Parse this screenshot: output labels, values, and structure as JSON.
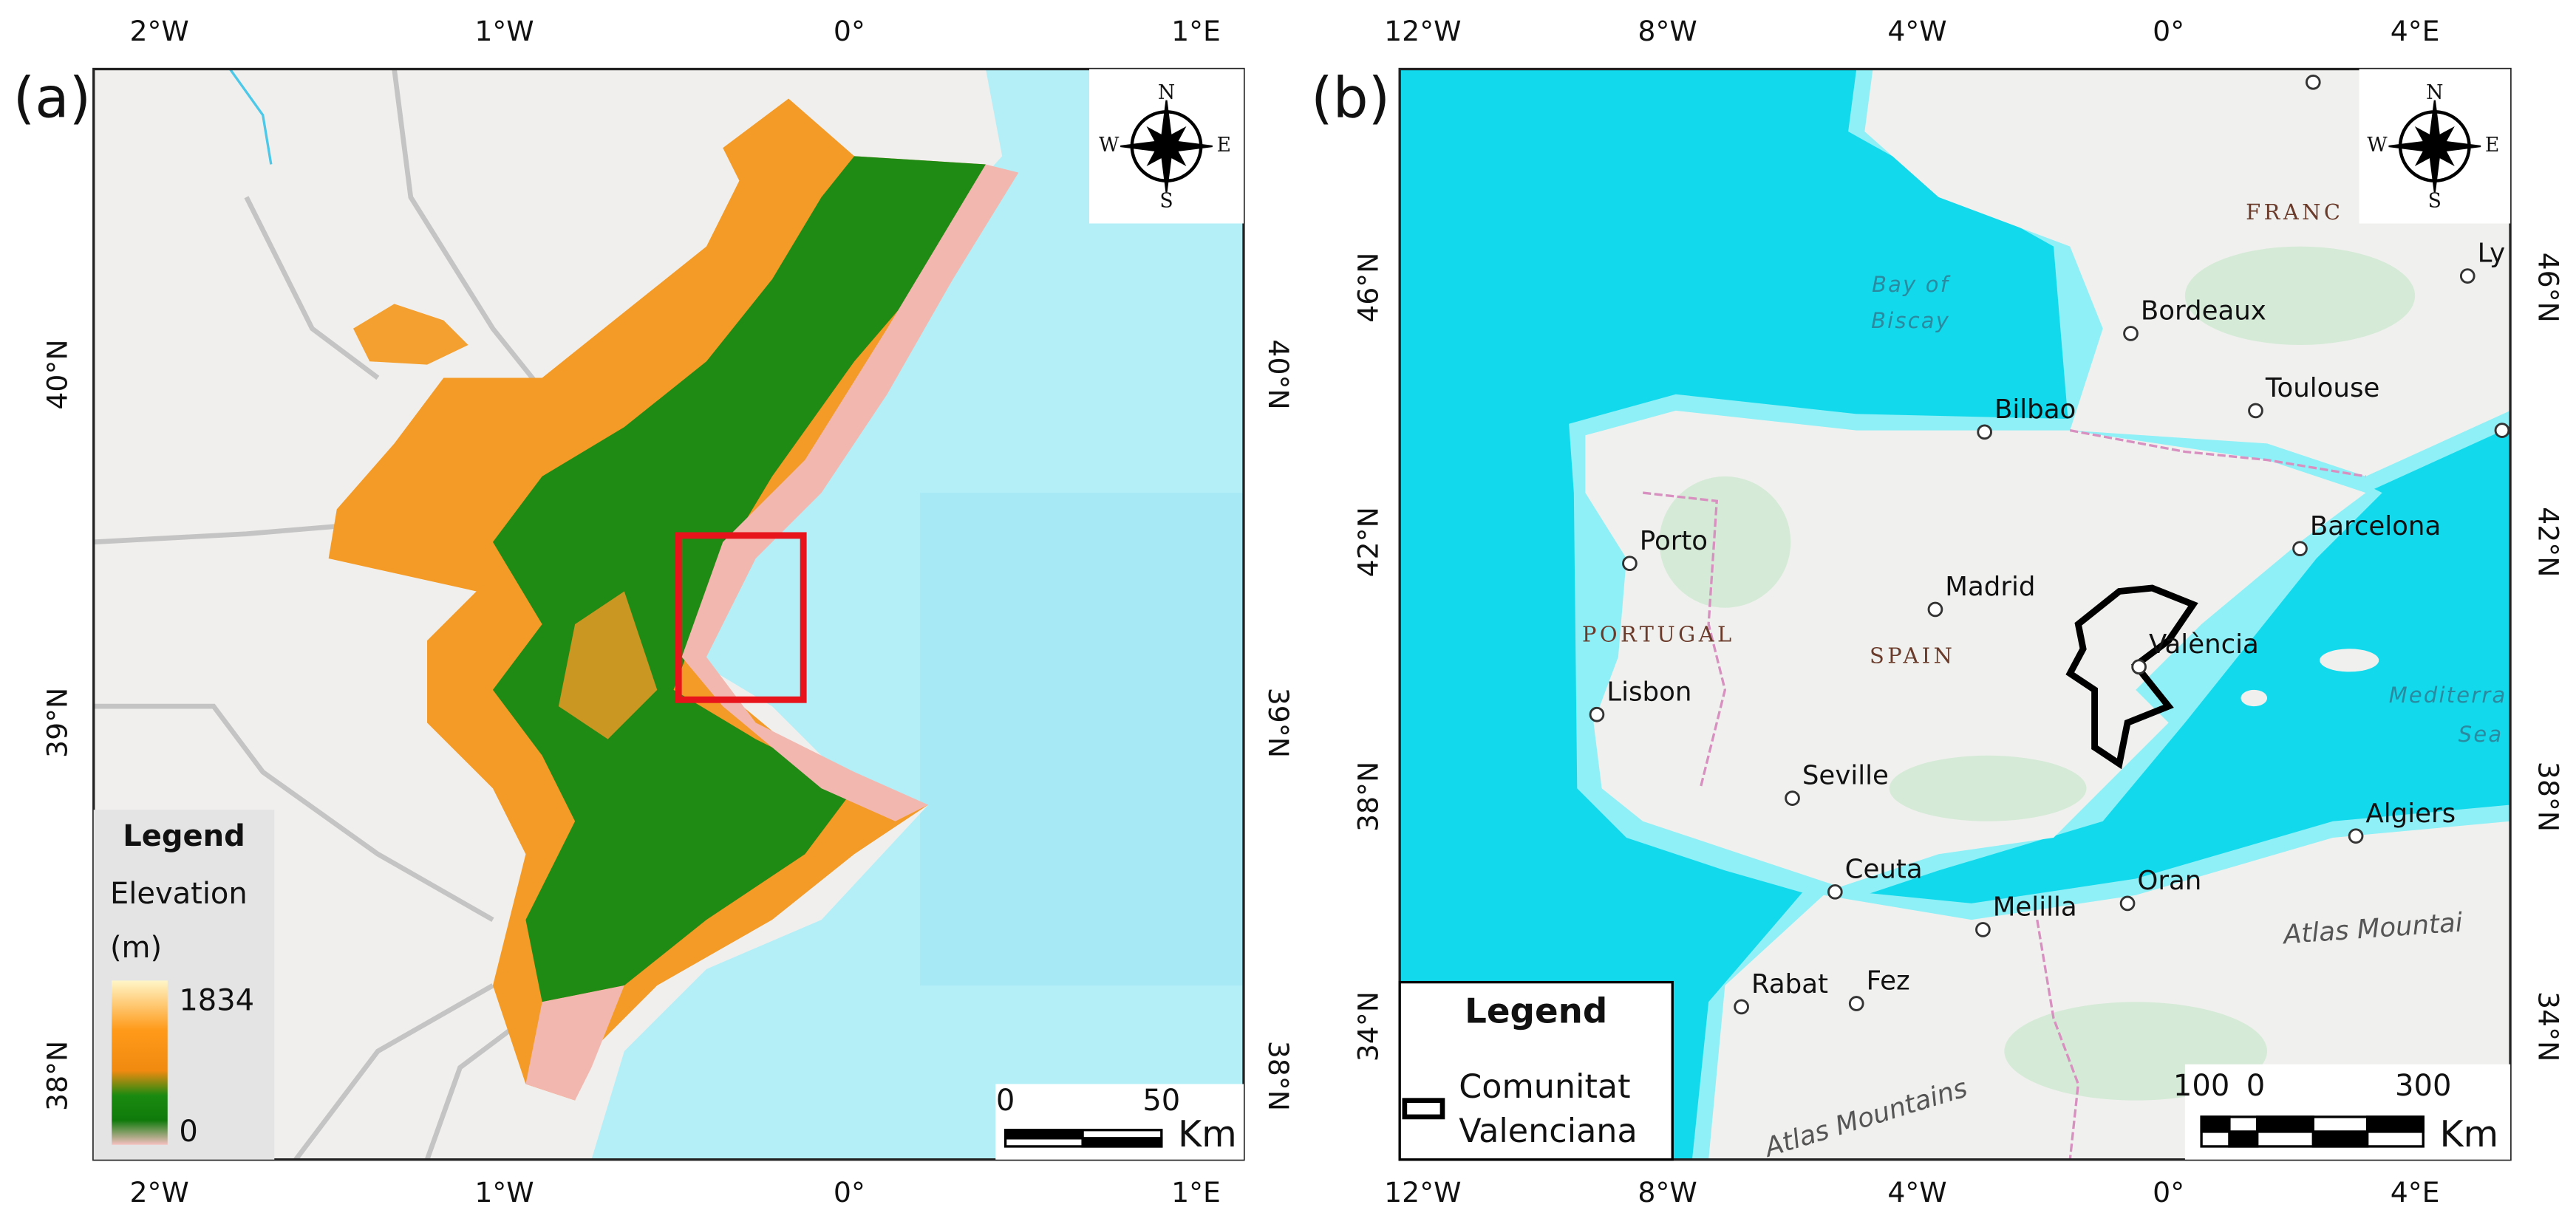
{
  "panels": [
    {
      "label": "(a)",
      "lon_ticks": [
        "2°W",
        "1°W",
        "0°",
        "1°E"
      ],
      "lat_ticks": [
        "40°N",
        "39°N",
        "38°N"
      ],
      "compass": {
        "n": "N",
        "e": "E",
        "s": "S",
        "w": "W"
      },
      "legend": {
        "title": "Legend",
        "subtitle_lines": [
          "Elevation",
          "(m)"
        ],
        "max": "1834",
        "min": "0"
      },
      "scale_bar": {
        "labels": [
          "0",
          "50"
        ],
        "unit": "Km"
      }
    },
    {
      "label": "(b)",
      "lon_ticks": [
        "12°W",
        "8°W",
        "4°W",
        "0°",
        "4°E"
      ],
      "lat_ticks": [
        "46°N",
        "42°N",
        "38°N",
        "34°N"
      ],
      "compass": {
        "n": "N",
        "e": "E",
        "s": "S",
        "w": "W"
      },
      "legend": {
        "title": "Legend",
        "item_lines": [
          "Comunitat",
          "Valenciana"
        ]
      },
      "scale_bar": {
        "labels": [
          "100",
          "0",
          "300"
        ],
        "unit": "Km"
      },
      "countries": [
        "FRANC",
        "PORTUGAL",
        "SPAIN"
      ],
      "seas": [
        [
          "Bay of",
          "Biscay"
        ],
        [
          "Mediterra",
          "Sea"
        ]
      ],
      "mountains": [
        "Atlas Mountai",
        "Atlas Mountains"
      ],
      "cities": [
        "Bordeaux",
        "Toulouse",
        "Bilbao",
        "Barcelona",
        "Porto",
        "Madrid",
        "València",
        "Lisbon",
        "Seville",
        "Ceuta",
        "Melilla",
        "Oran",
        "Algiers",
        "Rabat",
        "Fez",
        "Ly"
      ]
    }
  ]
}
